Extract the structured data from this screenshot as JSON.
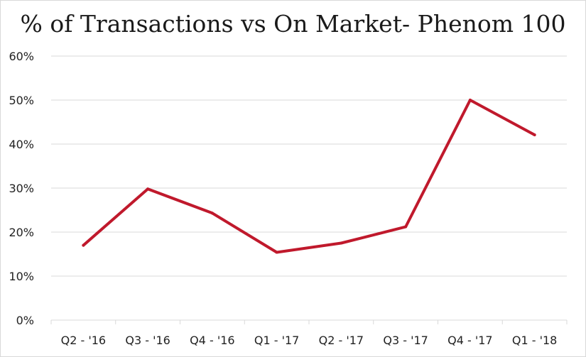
{
  "chart_data": {
    "type": "line",
    "title": "% of Transactions vs On Market- Phenom 100",
    "xlabel": "",
    "ylabel": "",
    "categories": [
      "Q2 - '16",
      "Q3 - '16",
      "Q4 - '16",
      "Q1 - '17",
      "Q2 - '17",
      "Q3 - '17",
      "Q4 - '17",
      "Q1 - '18"
    ],
    "series": [
      {
        "values": [
          17,
          29.8,
          24.3,
          15.4,
          17.5,
          21.2,
          50,
          42.1
        ]
      }
    ],
    "ylim": [
      0,
      60
    ],
    "yticks": [
      "0%",
      "10%",
      "20%",
      "30%",
      "40%",
      "50%",
      "60%"
    ],
    "grid": true,
    "legend": "none",
    "colors": {
      "line": "#c0192c",
      "grid": "#d9d9d9"
    }
  }
}
